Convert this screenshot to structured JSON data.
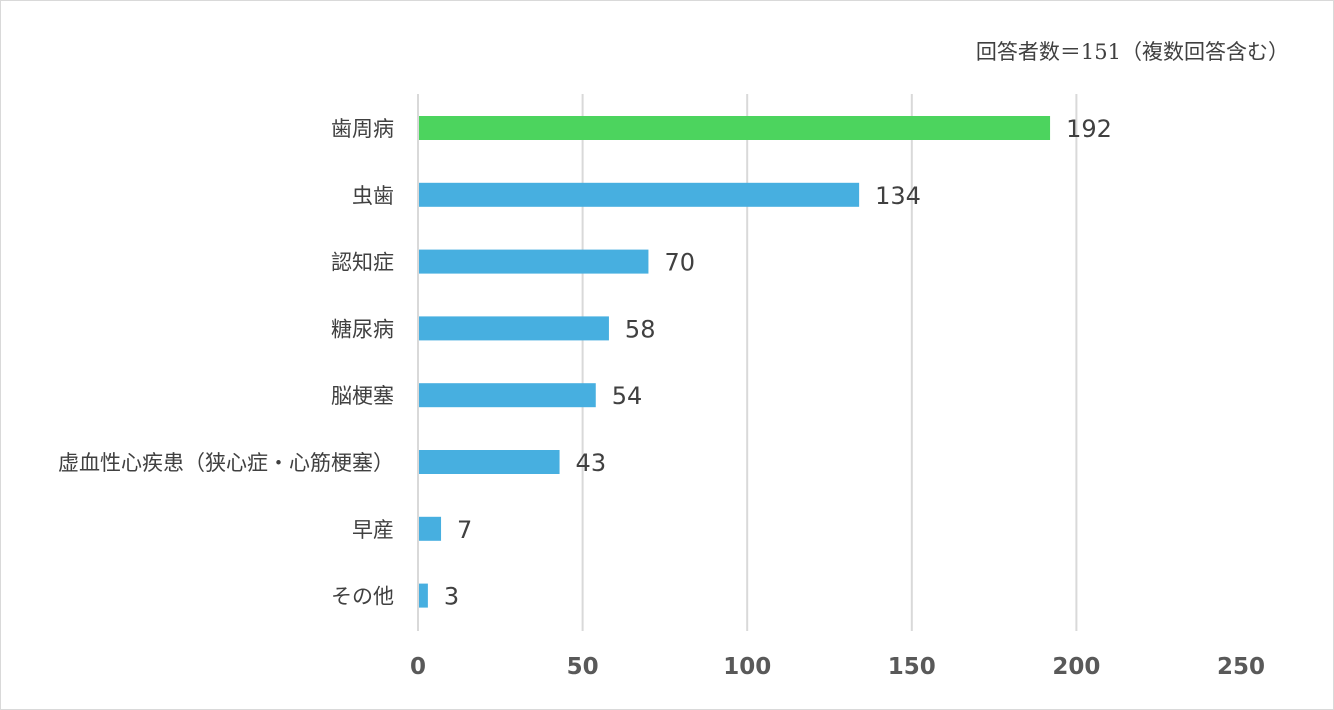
{
  "chart_data": {
    "type": "bar",
    "orientation": "horizontal",
    "note": "回答者数＝151（複数回答含む）",
    "categories": [
      "歯周病",
      "虫歯",
      "認知症",
      "糖尿病",
      "脳梗塞",
      "虚血性心疾患（狭心症・心筋梗塞）",
      "早産",
      "その他"
    ],
    "values": [
      192,
      134,
      70,
      58,
      54,
      43,
      7,
      3
    ],
    "xlim": [
      0,
      250
    ],
    "xticks": [
      0,
      50,
      100,
      150,
      200,
      250
    ],
    "xtick_labels": [
      "0",
      "50",
      "100",
      "150",
      "200",
      "250"
    ],
    "grid": true,
    "legend": "none",
    "colors": {
      "highlight": "#4cd45e",
      "default": "#47afe0",
      "grid": "#d9d9d9",
      "text": "#404040",
      "tick": "#595959"
    },
    "highlight_index": 0
  }
}
